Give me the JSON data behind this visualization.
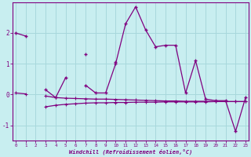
{
  "xlabel": "Windchill (Refroidissement éolien,°C)",
  "background_color": "#c8eef0",
  "line_color": "#800080",
  "grid_color": "#a8d8dc",
  "x": [
    0,
    1,
    2,
    3,
    4,
    5,
    6,
    7,
    8,
    9,
    10,
    11,
    12,
    13,
    14,
    15,
    16,
    17,
    18,
    19,
    20,
    21,
    22,
    23
  ],
  "y_main": [
    2.0,
    1.9,
    null,
    null,
    null,
    null,
    null,
    1.3,
    null,
    null,
    1.05,
    null,
    null,
    null,
    null,
    null,
    null,
    null,
    null,
    null,
    null,
    null,
    null,
    null
  ],
  "y_zigzag": [
    null,
    null,
    null,
    0.15,
    -0.1,
    0.55,
    null,
    0.3,
    0.05,
    0.05,
    1.0,
    2.3,
    2.85,
    2.1,
    1.55,
    1.6,
    1.6,
    0.05,
    1.1,
    -0.15,
    -0.2,
    -0.2,
    -1.2,
    -0.1
  ],
  "y_band_upper": [
    0.05,
    0.02,
    null,
    -0.05,
    -0.1,
    -0.12,
    -0.13,
    -0.14,
    -0.15,
    -0.15,
    -0.16,
    -0.17,
    -0.18,
    -0.19,
    -0.2,
    -0.21,
    -0.21,
    -0.22,
    -0.22,
    -0.22,
    -0.23,
    -0.23,
    -0.23,
    -0.23
  ],
  "y_band_lower": [
    null,
    null,
    null,
    -0.4,
    -0.35,
    -0.32,
    -0.3,
    -0.28,
    -0.27,
    -0.27,
    -0.26,
    -0.26,
    -0.25,
    -0.25,
    -0.25,
    -0.24,
    -0.24,
    -0.24,
    -0.24,
    -0.24,
    -0.23,
    -0.23,
    -0.23,
    -0.23
  ],
  "ylim": [
    -1.5,
    3.0
  ],
  "yticks": [
    -1,
    0,
    1,
    2
  ],
  "xticks": [
    0,
    1,
    2,
    3,
    4,
    5,
    6,
    7,
    8,
    9,
    10,
    11,
    12,
    13,
    14,
    15,
    16,
    17,
    18,
    19,
    20,
    21,
    22,
    23
  ]
}
